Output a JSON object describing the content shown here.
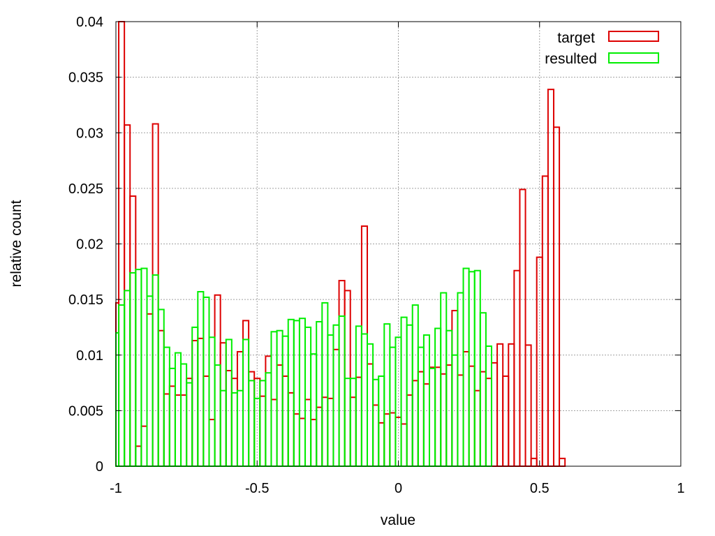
{
  "colors": {
    "target": "#dd0000",
    "resulted": "#00ee00",
    "grid": "#a0a0a0",
    "frame": "#000000"
  },
  "chart_data": {
    "type": "histogram",
    "title": "",
    "xlabel": "value",
    "ylabel": "relative count",
    "xlim": [
      -1,
      1
    ],
    "ylim": [
      0,
      0.04
    ],
    "grid": true,
    "legend_position": "top-right",
    "x_tick_labels": [
      "-1",
      "-0.5",
      "0",
      "0.5",
      "1"
    ],
    "x_tick_values": [
      -1,
      -0.5,
      0,
      0.5,
      1
    ],
    "y_tick_labels": [
      "0",
      "0.005",
      "0.01",
      "0.015",
      "0.02",
      "0.025",
      "0.03",
      "0.035",
      "0.04"
    ],
    "y_tick_values": [
      0,
      0.005,
      0.01,
      0.015,
      0.02,
      0.025,
      0.03,
      0.035,
      0.04
    ],
    "bin_width": 0.02,
    "bin_start": -1.0,
    "series": [
      {
        "name": "target",
        "key": "target",
        "values": [
          0.0147,
          0.04,
          0.0307,
          0.0243,
          0.0018,
          0.0036,
          0.0137,
          0.0308,
          0.0122,
          0.0065,
          0.0072,
          0.0064,
          0.0064,
          0.0079,
          0.0113,
          0.0115,
          0.0081,
          0.0042,
          0.0154,
          0.0111,
          0.0086,
          0.0079,
          0.0103,
          0.0131,
          0.0085,
          0.0079,
          0.0063,
          0.0099,
          0.006,
          0.0091,
          0.0081,
          0.0066,
          0.0047,
          0.0043,
          0.006,
          0.0042,
          0.0053,
          0.0062,
          0.0061,
          0.0105,
          0.0167,
          0.0158,
          0.0062,
          0.008,
          0.0216,
          0.0092,
          0.0055,
          0.0039,
          0.0047,
          0.0048,
          0.0044,
          0.0038,
          0.0064,
          0.0077,
          0.0085,
          0.0074,
          0.0089,
          0.0089,
          0.0083,
          0.0091,
          0.014,
          0.0082,
          0.0103,
          0.009,
          0.0068,
          0.0085,
          0.0079,
          0.0093,
          0.011,
          0.0081,
          0.011,
          0.0176,
          0.0249,
          0.0109,
          0.0007,
          0.0188,
          0.0261,
          0.0339,
          0.0305,
          0.0007
        ]
      },
      {
        "name": "resulted",
        "key": "resulted",
        "values": [
          0.012,
          0.0145,
          0.0158,
          0.0174,
          0.0177,
          0.0178,
          0.0153,
          0.0172,
          0.0141,
          0.0107,
          0.0088,
          0.0102,
          0.0092,
          0.0075,
          0.0125,
          0.0157,
          0.0152,
          0.0116,
          0.0091,
          0.0068,
          0.0114,
          0.0066,
          0.0068,
          0.0114,
          0.0077,
          0.0061,
          0.0077,
          0.0084,
          0.0121,
          0.0122,
          0.0117,
          0.0132,
          0.0131,
          0.0133,
          0.0125,
          0.0101,
          0.013,
          0.0147,
          0.0118,
          0.0127,
          0.0135,
          0.0079,
          0.0079,
          0.0126,
          0.0119,
          0.011,
          0.0078,
          0.0081,
          0.0128,
          0.0107,
          0.0116,
          0.0134,
          0.0127,
          0.0145,
          0.0107,
          0.0118,
          0.0088,
          0.0124,
          0.0156,
          0.0122,
          0.01,
          0.0156,
          0.0178,
          0.0175,
          0.0176,
          0.0138,
          0.0108
        ]
      }
    ]
  }
}
